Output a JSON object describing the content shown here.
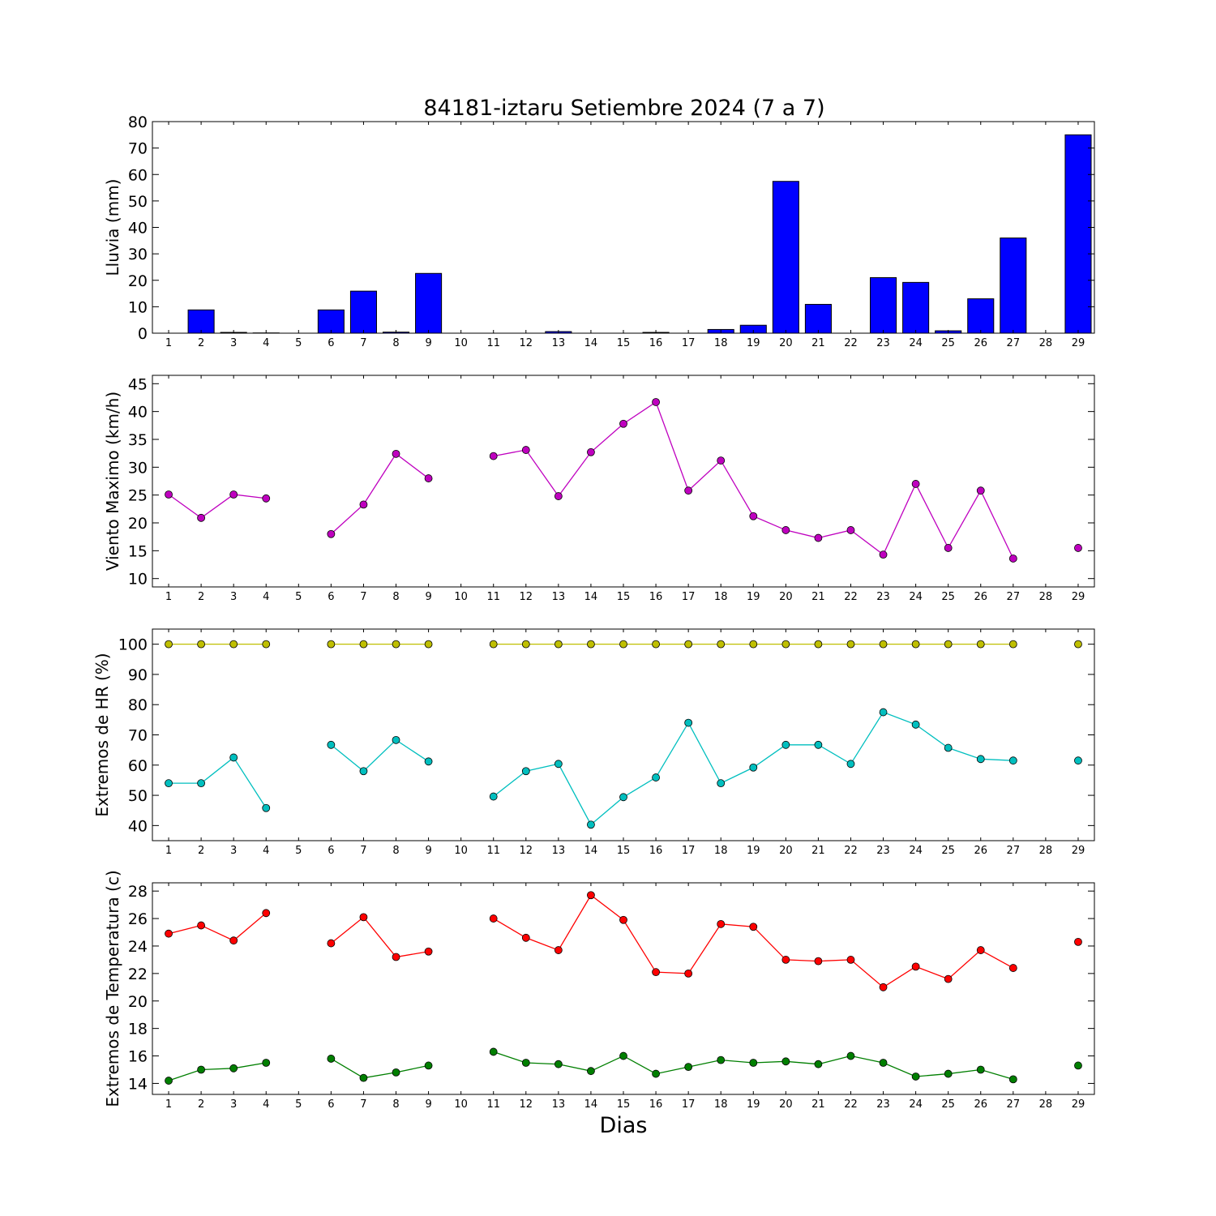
{
  "figure": {
    "title": "84181-iztaru Setiembre 2024  (7 a 7)",
    "xlabel": "Dias"
  },
  "colors": {
    "rain": "#0000ff",
    "wind": "#bf00bf",
    "hr_max": "#bfbf00",
    "hr_min": "#00bfbf",
    "temp_max": "#ff0000",
    "temp_min": "#007f00"
  },
  "chart_data": [
    {
      "type": "bar",
      "ylabel": "Lluvia (mm)",
      "x": [
        1,
        2,
        3,
        4,
        5,
        6,
        7,
        8,
        9,
        10,
        11,
        12,
        13,
        14,
        15,
        16,
        17,
        18,
        19,
        20,
        21,
        22,
        23,
        24,
        25,
        26,
        27,
        28,
        29
      ],
      "xlim": [
        0.5,
        29.5
      ],
      "ylim": [
        0,
        80
      ],
      "yticks": [
        0,
        10,
        20,
        30,
        40,
        50,
        60,
        70,
        80
      ],
      "series": [
        {
          "color": "#0000ff",
          "values": [
            0,
            8.8,
            0.3,
            0.1,
            0,
            8.8,
            15.9,
            0.4,
            22.6,
            0,
            0,
            0,
            0.6,
            0,
            0,
            0.3,
            0,
            1.4,
            3.0,
            57.4,
            10.9,
            0,
            21.0,
            19.2,
            0.9,
            13.0,
            36.0,
            0,
            75.0
          ]
        }
      ]
    },
    {
      "type": "line",
      "ylabel": "Viento Maximo (km/h)",
      "x": [
        1,
        2,
        3,
        4,
        5,
        6,
        7,
        8,
        9,
        10,
        11,
        12,
        13,
        14,
        15,
        16,
        17,
        18,
        19,
        20,
        21,
        22,
        23,
        24,
        25,
        26,
        27,
        28,
        29
      ],
      "xlim": [
        0.5,
        29.5
      ],
      "ylim": [
        8.5,
        46.5
      ],
      "yticks": [
        10,
        15,
        20,
        25,
        30,
        35,
        40,
        45
      ],
      "series": [
        {
          "color": "#bf00bf",
          "values": [
            25.1,
            20.9,
            25.1,
            24.4,
            null,
            18.0,
            23.3,
            32.4,
            28.0,
            null,
            32.0,
            33.1,
            24.8,
            32.7,
            37.8,
            41.7,
            25.8,
            31.2,
            21.2,
            18.7,
            17.3,
            18.7,
            14.3,
            27.0,
            15.5,
            25.8,
            13.6,
            null,
            15.5
          ]
        }
      ]
    },
    {
      "type": "line",
      "ylabel": "Extremos de HR (%)",
      "x": [
        1,
        2,
        3,
        4,
        5,
        6,
        7,
        8,
        9,
        10,
        11,
        12,
        13,
        14,
        15,
        16,
        17,
        18,
        19,
        20,
        21,
        22,
        23,
        24,
        25,
        26,
        27,
        28,
        29
      ],
      "xlim": [
        0.5,
        29.5
      ],
      "ylim": [
        35,
        105
      ],
      "yticks": [
        40,
        50,
        60,
        70,
        80,
        90,
        100
      ],
      "series": [
        {
          "color": "#bfbf00",
          "values": [
            100,
            100,
            100,
            100,
            null,
            100,
            100,
            100,
            100,
            null,
            100,
            100,
            100,
            100,
            100,
            100,
            100,
            100,
            100,
            100,
            100,
            100,
            100,
            100,
            100,
            100,
            100,
            null,
            100
          ]
        },
        {
          "color": "#00bfbf",
          "values": [
            54,
            54,
            62.5,
            45.8,
            null,
            66.7,
            58,
            68.3,
            61.2,
            null,
            49.6,
            58,
            60.4,
            40.3,
            49.4,
            55.9,
            74,
            54,
            59.2,
            66.7,
            66.7,
            60.4,
            77.5,
            73.4,
            65.7,
            62,
            61.5,
            null,
            61.5
          ]
        }
      ]
    },
    {
      "type": "line",
      "ylabel": "Extremos de Temperatura (c)",
      "x": [
        1,
        2,
        3,
        4,
        5,
        6,
        7,
        8,
        9,
        10,
        11,
        12,
        13,
        14,
        15,
        16,
        17,
        18,
        19,
        20,
        21,
        22,
        23,
        24,
        25,
        26,
        27,
        28,
        29
      ],
      "xlim": [
        0.5,
        29.5
      ],
      "ylim": [
        13.2,
        28.6
      ],
      "yticks": [
        14,
        16,
        18,
        20,
        22,
        24,
        26,
        28
      ],
      "series": [
        {
          "color": "#ff0000",
          "values": [
            24.9,
            25.5,
            24.4,
            26.4,
            null,
            24.2,
            26.1,
            23.2,
            23.6,
            null,
            26.0,
            24.6,
            23.7,
            27.7,
            25.9,
            22.1,
            22.0,
            25.6,
            25.4,
            23.0,
            22.9,
            23.0,
            21.0,
            22.5,
            21.6,
            23.7,
            22.4,
            null,
            24.3
          ]
        },
        {
          "color": "#007f00",
          "values": [
            14.2,
            15.0,
            15.1,
            15.5,
            null,
            15.8,
            14.4,
            14.8,
            15.3,
            null,
            16.3,
            15.5,
            15.4,
            14.9,
            16.0,
            14.7,
            15.2,
            15.7,
            15.5,
            15.6,
            15.4,
            16.0,
            15.5,
            14.5,
            14.7,
            15.0,
            14.3,
            null,
            15.3
          ]
        }
      ]
    }
  ]
}
